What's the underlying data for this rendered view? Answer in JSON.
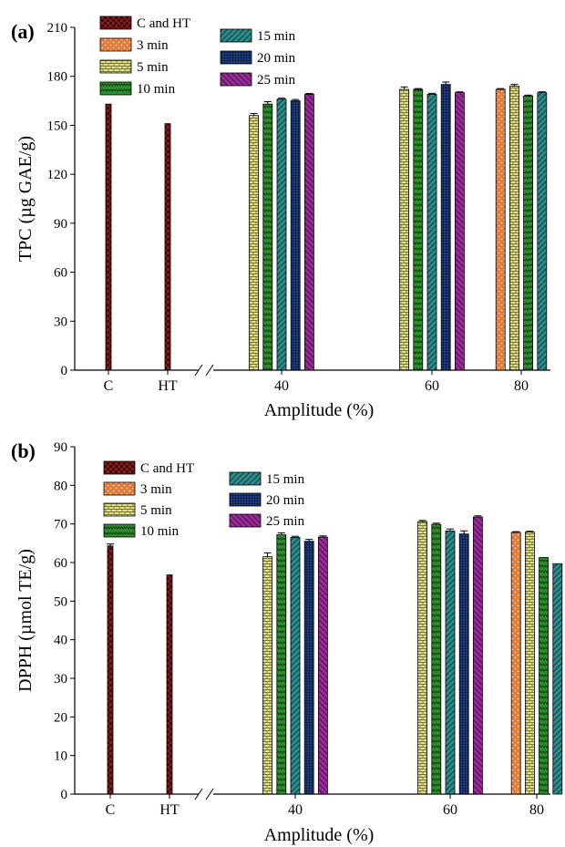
{
  "colors": {
    "C and HT": "#8b1a1a",
    "3 min": "#e07b39",
    "5 min": "#e3e08a",
    "10 min": "#2e8b2e",
    "15 min": "#2e8b8b",
    "20 min": "#1f3f8a",
    "25 min": "#9b2a9b"
  },
  "chart_data": [
    {
      "type": "bar",
      "panel_label": "(a)",
      "xlabel": "Amplitude (%)",
      "ylabel": "TPC (µg GAE/g)",
      "ylim": [
        0,
        210
      ],
      "yticks": [
        0,
        30,
        60,
        90,
        120,
        150,
        180,
        210
      ],
      "x_tick_labels": [
        "C",
        "HT",
        "40",
        "60",
        "80"
      ],
      "legend": [
        "C and HT",
        "3 min",
        "5 min",
        "10 min",
        "15 min",
        "20 min",
        "25 min"
      ],
      "groups": [
        {
          "label": "C",
          "bars": [
            {
              "series": "C and HT",
              "value": 163,
              "err": 0
            }
          ]
        },
        {
          "label": "HT",
          "bars": [
            {
              "series": "C and HT",
              "value": 151,
              "err": 0
            }
          ]
        },
        {
          "label": "40",
          "bars": [
            {
              "series": "5 min",
              "value": 156,
              "err": 1.2
            },
            {
              "series": "10 min",
              "value": 163,
              "err": 1.5
            },
            {
              "series": "15 min",
              "value": 166,
              "err": 0.6
            },
            {
              "series": "20 min",
              "value": 165,
              "err": 0.8
            },
            {
              "series": "25 min",
              "value": 169,
              "err": 0.5
            }
          ]
        },
        {
          "label": "60",
          "bars": [
            {
              "series": "5 min",
              "value": 172,
              "err": 1.5
            },
            {
              "series": "10 min",
              "value": 172,
              "err": 0.5
            },
            {
              "series": "15 min",
              "value": 169,
              "err": 0.6
            },
            {
              "series": "20 min",
              "value": 175,
              "err": 1.5
            },
            {
              "series": "25 min",
              "value": 170,
              "err": 0.5
            }
          ]
        },
        {
          "label": "80",
          "bars": [
            {
              "series": "3 min",
              "value": 172,
              "err": 0.5
            },
            {
              "series": "5 min",
              "value": 174,
              "err": 1.0
            },
            {
              "series": "10 min",
              "value": 168,
              "err": 0.5
            },
            {
              "series": "15 min",
              "value": 170,
              "err": 0.5
            }
          ]
        }
      ]
    },
    {
      "type": "bar",
      "panel_label": "(b)",
      "xlabel": "Amplitude (%)",
      "ylabel": "DPPH (µmol TE/g)",
      "ylim": [
        0,
        90
      ],
      "yticks": [
        0,
        10,
        20,
        30,
        40,
        50,
        60,
        70,
        80,
        90
      ],
      "x_tick_labels": [
        "C",
        "HT",
        "40",
        "60",
        "80"
      ],
      "legend": [
        "C and HT",
        "3 min",
        "5 min",
        "10 min",
        "15 min",
        "20 min",
        "25 min"
      ],
      "groups": [
        {
          "label": "C",
          "bars": [
            {
              "series": "C and HT",
              "value": 64.3,
              "err": 0.5
            }
          ]
        },
        {
          "label": "HT",
          "bars": [
            {
              "series": "C and HT",
              "value": 56.8,
              "err": 0
            }
          ]
        },
        {
          "label": "40",
          "bars": [
            {
              "series": "5 min",
              "value": 61.5,
              "err": 1.0
            },
            {
              "series": "10 min",
              "value": 67.2,
              "err": 0.5
            },
            {
              "series": "15 min",
              "value": 66.5,
              "err": 0.3
            },
            {
              "series": "20 min",
              "value": 65.5,
              "err": 0.5
            },
            {
              "series": "25 min",
              "value": 66.6,
              "err": 0.3
            }
          ]
        },
        {
          "label": "60",
          "bars": [
            {
              "series": "5 min",
              "value": 70.6,
              "err": 0.3
            },
            {
              "series": "10 min",
              "value": 69.9,
              "err": 0.3
            },
            {
              "series": "15 min",
              "value": 68.2,
              "err": 0.5
            },
            {
              "series": "20 min",
              "value": 67.4,
              "err": 0.8
            },
            {
              "series": "25 min",
              "value": 71.8,
              "err": 0.3
            }
          ]
        },
        {
          "label": "80",
          "bars": [
            {
              "series": "3 min",
              "value": 67.8,
              "err": 0.2
            },
            {
              "series": "5 min",
              "value": 67.9,
              "err": 0.2
            },
            {
              "series": "10 min",
              "value": 61.3,
              "err": 0
            },
            {
              "series": "15 min",
              "value": 59.7,
              "err": 0
            }
          ]
        }
      ]
    }
  ]
}
